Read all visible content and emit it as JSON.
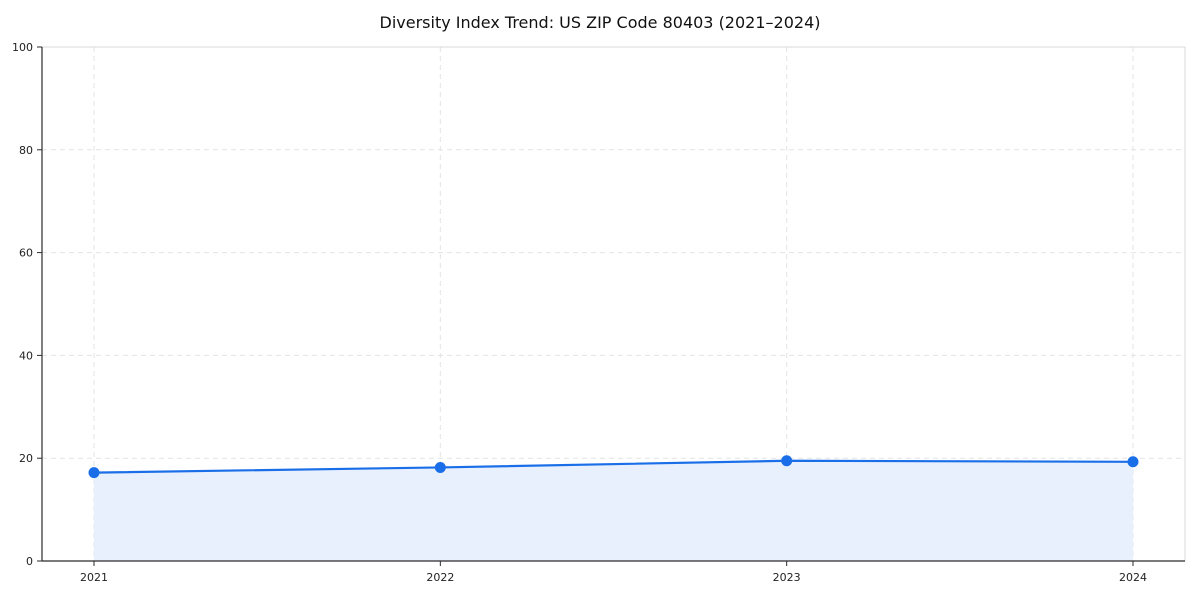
{
  "title": "Diversity Index Trend: US ZIP Code 80403 (2021–2024)",
  "chart_data": {
    "type": "area",
    "title": "Diversity Index Trend: US ZIP Code 80403 (2021–2024)",
    "x": [
      2021,
      2022,
      2023,
      2024
    ],
    "xticklabels": [
      "2021",
      "2022",
      "2023",
      "2024"
    ],
    "series": [
      {
        "name": "Diversity Index",
        "values": [
          17.2,
          18.2,
          19.5,
          19.3
        ]
      }
    ],
    "xlabel": "",
    "ylabel": "",
    "ylim": [
      0,
      100
    ],
    "yticks": [
      0,
      20,
      40,
      60,
      80,
      100
    ],
    "grid": "dashed",
    "legend_position": "none",
    "colors": {
      "line": "#1a6fe8",
      "marker": "#1a6fe8",
      "fill": "#e8f0fd",
      "grid": "#e3e3e3",
      "spine_dark": "#2b2b2b",
      "spine_light": "#d9d9d9",
      "tick_text": "#222222"
    }
  }
}
